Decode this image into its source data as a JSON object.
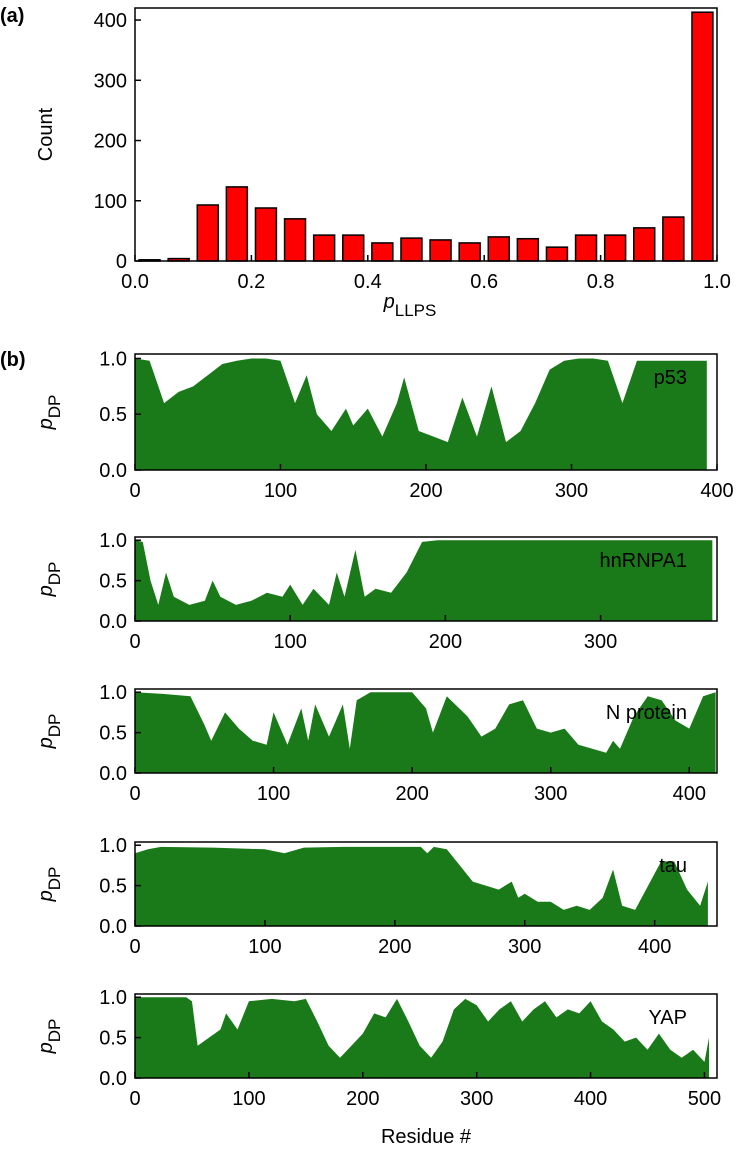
{
  "chart_data": [
    {
      "type": "histogram",
      "panel_label": "(a)",
      "ylabel": "Count",
      "xlabel": "p",
      "xlabel_subscript": "LLPS",
      "color": "#ff0000",
      "bins": [
        0,
        0.05,
        0.1,
        0.15,
        0.2,
        0.25,
        0.3,
        0.35,
        0.4,
        0.45,
        0.5,
        0.55,
        0.6,
        0.65,
        0.7,
        0.75,
        0.8,
        0.85,
        0.9,
        0.95,
        1.0
      ],
      "values": [
        2,
        4,
        93,
        123,
        88,
        70,
        43,
        43,
        30,
        38,
        35,
        30,
        40,
        37,
        23,
        43,
        43,
        55,
        73,
        413
      ],
      "xlim": [
        0,
        1
      ],
      "ylim": [
        0,
        420
      ],
      "xticks": [
        {
          "value": 0,
          "label": "0.0"
        },
        {
          "value": 0.2,
          "label": "0.2"
        },
        {
          "value": 0.4,
          "label": "0.4"
        },
        {
          "value": 0.6,
          "label": "0.6"
        },
        {
          "value": 0.8,
          "label": "0.8"
        },
        {
          "value": 1,
          "label": "1.0"
        }
      ],
      "yticks": [
        0,
        100,
        200,
        300,
        400
      ]
    },
    {
      "type": "area",
      "panel_label": "(b)",
      "annotation": "p53",
      "ylabel": "p",
      "ylabel_subscript": "DP",
      "color": "#1a7a1a",
      "x": [
        0,
        10,
        20,
        30,
        40,
        50,
        60,
        70,
        80,
        90,
        100,
        110,
        118,
        125,
        135,
        145,
        150,
        160,
        170,
        180,
        185,
        195,
        205,
        215,
        225,
        235,
        245,
        255,
        265,
        275,
        285,
        295,
        305,
        315,
        325,
        335,
        345,
        355,
        365,
        375,
        385,
        393
      ],
      "values": [
        1.0,
        0.98,
        0.6,
        0.7,
        0.75,
        0.85,
        0.95,
        0.98,
        1.0,
        1.0,
        0.98,
        0.6,
        0.85,
        0.5,
        0.35,
        0.55,
        0.4,
        0.55,
        0.3,
        0.6,
        0.83,
        0.35,
        0.3,
        0.25,
        0.65,
        0.3,
        0.75,
        0.25,
        0.35,
        0.6,
        0.9,
        0.98,
        1.0,
        1.0,
        0.98,
        0.6,
        0.98,
        0.98,
        0.98,
        0.98,
        0.98,
        0.98
      ],
      "xlim": [
        0,
        400
      ],
      "ylim": [
        0,
        1.04
      ],
      "xticks": [
        0,
        100,
        200,
        300,
        400
      ],
      "yticks": [
        {
          "value": 0,
          "label": "0.0"
        },
        {
          "value": 0.5,
          "label": "0.5"
        },
        {
          "value": 1,
          "label": "1.0"
        }
      ]
    },
    {
      "type": "area",
      "annotation": "hnRNPA1",
      "ylabel": "p",
      "ylabel_subscript": "DP",
      "color": "#1a7a1a",
      "x": [
        0,
        5,
        10,
        15,
        20,
        25,
        35,
        45,
        50,
        55,
        65,
        75,
        85,
        95,
        100,
        108,
        115,
        125,
        130,
        135,
        142,
        148,
        155,
        165,
        175,
        185,
        195,
        250,
        300,
        372
      ],
      "values": [
        1.0,
        0.98,
        0.5,
        0.2,
        0.6,
        0.3,
        0.2,
        0.25,
        0.5,
        0.3,
        0.2,
        0.25,
        0.35,
        0.3,
        0.45,
        0.2,
        0.4,
        0.2,
        0.6,
        0.3,
        0.88,
        0.3,
        0.4,
        0.35,
        0.6,
        0.98,
        1.0,
        1.0,
        1.0,
        1.0
      ],
      "xlim": [
        0,
        375
      ],
      "ylim": [
        0,
        1.04
      ],
      "xticks": [
        0,
        100,
        200,
        300
      ],
      "yticks": [
        {
          "value": 0,
          "label": "0.0"
        },
        {
          "value": 0.5,
          "label": "0.5"
        },
        {
          "value": 1,
          "label": "1.0"
        }
      ]
    },
    {
      "type": "area",
      "annotation": "N protein",
      "ylabel": "p",
      "ylabel_subscript": "DP",
      "color": "#1a7a1a",
      "x": [
        0,
        20,
        40,
        50,
        55,
        65,
        75,
        85,
        95,
        100,
        110,
        120,
        125,
        130,
        140,
        150,
        155,
        160,
        170,
        200,
        210,
        215,
        225,
        240,
        250,
        260,
        270,
        280,
        290,
        300,
        310,
        320,
        330,
        340,
        345,
        350,
        360,
        370,
        380,
        390,
        400,
        410,
        419
      ],
      "values": [
        1.0,
        0.98,
        0.95,
        0.6,
        0.4,
        0.75,
        0.55,
        0.4,
        0.35,
        0.75,
        0.35,
        0.8,
        0.4,
        0.85,
        0.45,
        0.85,
        0.3,
        0.9,
        1.0,
        1.0,
        0.8,
        0.5,
        0.95,
        0.7,
        0.45,
        0.55,
        0.85,
        0.9,
        0.55,
        0.5,
        0.55,
        0.35,
        0.3,
        0.25,
        0.4,
        0.3,
        0.7,
        0.95,
        0.9,
        0.65,
        0.55,
        0.95,
        1.0
      ],
      "xlim": [
        0,
        420
      ],
      "ylim": [
        0,
        1.04
      ],
      "xticks": [
        0,
        100,
        200,
        300,
        400
      ],
      "yticks": [
        {
          "value": 0,
          "label": "0.0"
        },
        {
          "value": 0.5,
          "label": "0.5"
        },
        {
          "value": 1,
          "label": "1.0"
        }
      ]
    },
    {
      "type": "area",
      "annotation": "tau",
      "ylabel": "p",
      "ylabel_subscript": "DP",
      "color": "#1a7a1a",
      "x": [
        0,
        10,
        20,
        60,
        100,
        115,
        130,
        160,
        200,
        220,
        225,
        230,
        240,
        250,
        260,
        270,
        280,
        290,
        295,
        300,
        310,
        320,
        330,
        340,
        350,
        360,
        368,
        375,
        385,
        395,
        405,
        415,
        425,
        435,
        441
      ],
      "values": [
        0.9,
        0.95,
        0.98,
        0.97,
        0.95,
        0.9,
        0.97,
        0.98,
        0.98,
        0.98,
        0.9,
        0.98,
        0.95,
        0.75,
        0.55,
        0.5,
        0.45,
        0.55,
        0.35,
        0.4,
        0.3,
        0.3,
        0.2,
        0.25,
        0.2,
        0.35,
        0.7,
        0.25,
        0.2,
        0.5,
        0.8,
        0.8,
        0.45,
        0.25,
        0.55
      ],
      "xlim": [
        0,
        448
      ],
      "ylim": [
        0,
        1.04
      ],
      "xticks": [
        0,
        100,
        200,
        300,
        400
      ],
      "yticks": [
        {
          "value": 0,
          "label": "0.0"
        },
        {
          "value": 0.5,
          "label": "0.5"
        },
        {
          "value": 1,
          "label": "1.0"
        }
      ]
    },
    {
      "type": "area",
      "annotation": "YAP",
      "ylabel": "p",
      "ylabel_subscript": "DP",
      "xlabel": "Residue #",
      "color": "#1a7a1a",
      "x": [
        0,
        45,
        50,
        55,
        65,
        75,
        80,
        90,
        100,
        120,
        140,
        150,
        160,
        170,
        180,
        190,
        200,
        210,
        220,
        230,
        240,
        250,
        260,
        270,
        280,
        290,
        300,
        310,
        320,
        330,
        340,
        350,
        360,
        370,
        380,
        390,
        400,
        410,
        420,
        430,
        440,
        450,
        460,
        470,
        480,
        490,
        500,
        504
      ],
      "values": [
        1.0,
        1.0,
        0.95,
        0.4,
        0.5,
        0.6,
        0.8,
        0.6,
        0.95,
        0.98,
        0.95,
        0.98,
        0.7,
        0.4,
        0.25,
        0.4,
        0.55,
        0.8,
        0.75,
        0.98,
        0.7,
        0.4,
        0.25,
        0.45,
        0.85,
        0.98,
        0.9,
        0.7,
        0.85,
        0.95,
        0.7,
        0.85,
        0.95,
        0.75,
        0.85,
        0.8,
        0.95,
        0.7,
        0.6,
        0.45,
        0.5,
        0.35,
        0.55,
        0.35,
        0.25,
        0.35,
        0.2,
        0.5
      ],
      "xlim": [
        0,
        511
      ],
      "ylim": [
        0,
        1.04
      ],
      "xticks": [
        0,
        100,
        200,
        300,
        400,
        500
      ],
      "yticks": [
        {
          "value": 0,
          "label": "0.0"
        },
        {
          "value": 0.5,
          "label": "0.5"
        },
        {
          "value": 1,
          "label": "1.0"
        }
      ]
    }
  ]
}
